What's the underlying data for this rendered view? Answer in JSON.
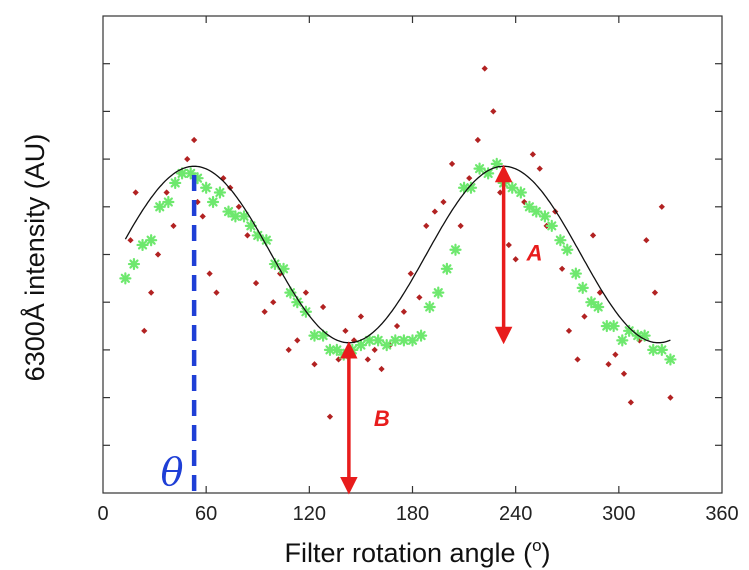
{
  "chart_data": {
    "type": "scatter",
    "xlabel": "Filter rotation angle (",
    "xlabel_sup": "o",
    "xlabel_end": ")",
    "ylabel": "6300Å intensity (AU)",
    "xlim": [
      0,
      360
    ],
    "ylim": [
      0,
      10
    ],
    "x_ticks": [
      0,
      60,
      120,
      180,
      240,
      300,
      360
    ],
    "x_tick_labels": [
      "0",
      "60",
      "120",
      "180",
      "240",
      "300",
      "360"
    ],
    "y_ticks": [
      1,
      2,
      3,
      4,
      5,
      6,
      7,
      8,
      9
    ],
    "y_tick_labels_visible": false,
    "grid": false,
    "series": [
      {
        "marker": "dot",
        "color": "#b22222",
        "points": [
          [
            16,
            5.3
          ],
          [
            19,
            6.3
          ],
          [
            24,
            3.4
          ],
          [
            28,
            4.2
          ],
          [
            32,
            5.0
          ],
          [
            37,
            6.3
          ],
          [
            41,
            5.6
          ],
          [
            45,
            6.7
          ],
          [
            49,
            7.0
          ],
          [
            53,
            7.4
          ],
          [
            55,
            6.1
          ],
          [
            58,
            5.8
          ],
          [
            62,
            4.6
          ],
          [
            66,
            4.2
          ],
          [
            70,
            6.6
          ],
          [
            74,
            6.4
          ],
          [
            79,
            6.0
          ],
          [
            84,
            5.4
          ],
          [
            89,
            4.4
          ],
          [
            94,
            3.8
          ],
          [
            99,
            4.0
          ],
          [
            103,
            4.6
          ],
          [
            108,
            3.0
          ],
          [
            113,
            3.2
          ],
          [
            118,
            4.2
          ],
          [
            123,
            2.7
          ],
          [
            128,
            3.9
          ],
          [
            132,
            1.6
          ],
          [
            137,
            2.8
          ],
          [
            141,
            3.4
          ],
          [
            146,
            3.2
          ],
          [
            150,
            3.7
          ],
          [
            154,
            2.8
          ],
          [
            158,
            3.0
          ],
          [
            162,
            2.6
          ],
          [
            167,
            3.1
          ],
          [
            171,
            3.5
          ],
          [
            175,
            3.8
          ],
          [
            179,
            4.6
          ],
          [
            184,
            4.1
          ],
          [
            188,
            5.6
          ],
          [
            193,
            5.9
          ],
          [
            198,
            6.1
          ],
          [
            203,
            6.9
          ],
          [
            208,
            5.6
          ],
          [
            213,
            6.6
          ],
          [
            218,
            7.4
          ],
          [
            222,
            8.9
          ],
          [
            227,
            8.0
          ],
          [
            231,
            6.3
          ],
          [
            236,
            5.2
          ],
          [
            240,
            4.9
          ],
          [
            245,
            6.1
          ],
          [
            250,
            7.1
          ],
          [
            254,
            6.8
          ],
          [
            258,
            5.6
          ],
          [
            263,
            5.9
          ],
          [
            267,
            4.7
          ],
          [
            271,
            3.4
          ],
          [
            276,
            2.8
          ],
          [
            280,
            3.7
          ],
          [
            285,
            5.4
          ],
          [
            289,
            4.2
          ],
          [
            294,
            2.7
          ],
          [
            298,
            2.9
          ],
          [
            303,
            2.5
          ],
          [
            307,
            1.9
          ],
          [
            312,
            3.2
          ],
          [
            316,
            5.3
          ],
          [
            321,
            4.2
          ],
          [
            325,
            6.0
          ],
          [
            330,
            2.0
          ]
        ]
      },
      {
        "marker": "star",
        "color": "#6ee86e",
        "points": [
          [
            13,
            4.5
          ],
          [
            18,
            4.8
          ],
          [
            23,
            5.2
          ],
          [
            28,
            5.3
          ],
          [
            33,
            6.0
          ],
          [
            38,
            6.1
          ],
          [
            42,
            6.5
          ],
          [
            46,
            6.7
          ],
          [
            51,
            6.7
          ],
          [
            55,
            6.6
          ],
          [
            60,
            6.4
          ],
          [
            64,
            6.1
          ],
          [
            68,
            6.3
          ],
          [
            73,
            5.9
          ],
          [
            77,
            5.8
          ],
          [
            82,
            5.8
          ],
          [
            86,
            5.6
          ],
          [
            90,
            5.4
          ],
          [
            95,
            5.3
          ],
          [
            100,
            4.8
          ],
          [
            105,
            4.7
          ],
          [
            109,
            4.2
          ],
          [
            113,
            4.0
          ],
          [
            118,
            3.8
          ],
          [
            123,
            3.3
          ],
          [
            128,
            3.3
          ],
          [
            132,
            3.0
          ],
          [
            136,
            3.0
          ],
          [
            140,
            2.9
          ],
          [
            145,
            3.0
          ],
          [
            150,
            3.1
          ],
          [
            155,
            3.2
          ],
          [
            160,
            3.2
          ],
          [
            165,
            3.1
          ],
          [
            170,
            3.2
          ],
          [
            175,
            3.2
          ],
          [
            180,
            3.2
          ],
          [
            185,
            3.3
          ],
          [
            190,
            3.9
          ],
          [
            195,
            4.2
          ],
          [
            200,
            4.7
          ],
          [
            205,
            5.1
          ],
          [
            210,
            6.4
          ],
          [
            214,
            6.4
          ],
          [
            219,
            6.8
          ],
          [
            224,
            6.7
          ],
          [
            229,
            6.9
          ],
          [
            233,
            6.5
          ],
          [
            238,
            6.4
          ],
          [
            243,
            6.3
          ],
          [
            248,
            6.0
          ],
          [
            252,
            5.9
          ],
          [
            257,
            5.8
          ],
          [
            261,
            5.6
          ],
          [
            266,
            5.3
          ],
          [
            270,
            5.1
          ],
          [
            275,
            4.6
          ],
          [
            279,
            4.3
          ],
          [
            284,
            4.0
          ],
          [
            288,
            3.9
          ],
          [
            293,
            3.5
          ],
          [
            297,
            3.5
          ],
          [
            302,
            3.2
          ],
          [
            306,
            3.4
          ],
          [
            311,
            3.3
          ],
          [
            315,
            3.3
          ],
          [
            320,
            3.0
          ],
          [
            325,
            3.0
          ],
          [
            330,
            2.8
          ]
        ]
      }
    ],
    "fit_curve": {
      "type": "sinusoid",
      "color": "#111111",
      "x_range": [
        13,
        330
      ],
      "mean": 5.0,
      "amplitude": 1.85,
      "peak_x": 53,
      "period": 180
    },
    "annotations": [
      {
        "label": "θ",
        "x": 53,
        "color": "#1f3fd6",
        "y_from": 0,
        "y_to": 6.85
      },
      {
        "label": "B",
        "x": 143,
        "color": "#e81c1c",
        "y_from": 0,
        "y_to": 3.15
      },
      {
        "label": "A",
        "x": 233,
        "color": "#e81c1c",
        "y_from": 3.15,
        "y_to": 6.85
      }
    ]
  }
}
